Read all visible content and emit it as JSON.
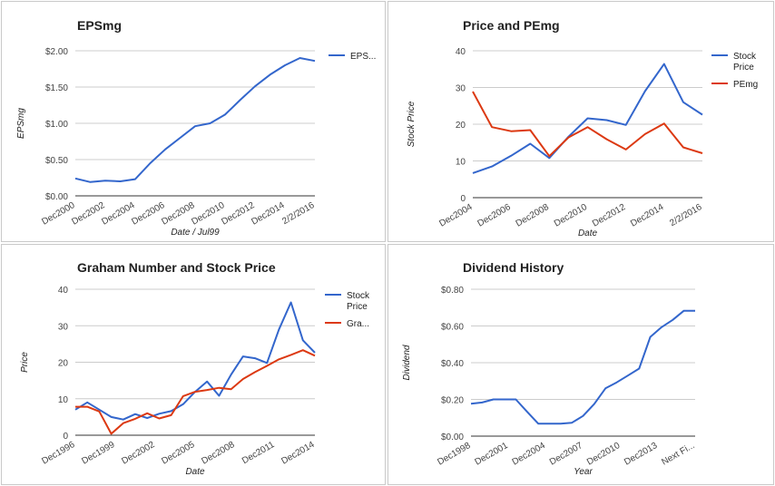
{
  "colors": {
    "blue": "#3366cc",
    "red": "#dc3912"
  },
  "chart_data": [
    {
      "type": "line",
      "title": "EPSmg",
      "xlabel": "Date / Jul99",
      "ylabel": "EPSmg",
      "yticks": [
        "$0.00",
        "$0.50",
        "$1.00",
        "$1.50",
        "$2.00"
      ],
      "ylim": [
        0,
        2.0
      ],
      "xticks": [
        "Dec2000",
        "Dec2002",
        "Dec2004",
        "Dec2006",
        "Dec2008",
        "Dec2010",
        "Dec2012",
        "Dec2014",
        "2/2/2016"
      ],
      "grid": true,
      "legend": "right",
      "series": [
        {
          "name": "EPS...",
          "color": "#3366cc",
          "values": [
            0.24,
            0.19,
            0.21,
            0.2,
            0.23,
            0.45,
            0.64,
            0.8,
            0.96,
            1.0,
            1.12,
            1.32,
            1.51,
            1.67,
            1.8,
            1.9,
            1.86
          ]
        }
      ]
    },
    {
      "type": "line",
      "title": "Price and PEmg",
      "xlabel": "Date",
      "ylabel": "Stock Price",
      "yticks": [
        "0",
        "10",
        "20",
        "30",
        "40"
      ],
      "ylim": [
        0,
        40
      ],
      "xticks": [
        "Dec2004",
        "Dec2006",
        "Dec2008",
        "Dec2010",
        "Dec2012",
        "Dec2014",
        "2/2/2016"
      ],
      "grid": true,
      "legend": "right",
      "series": [
        {
          "name": "Stock Price",
          "color": "#3366cc",
          "values": [
            6.7,
            8.5,
            11.4,
            14.7,
            10.8,
            16.6,
            21.6,
            21.1,
            19.8,
            29.0,
            36.4,
            26.0,
            22.6
          ]
        },
        {
          "name": "PEmg",
          "color": "#dc3912",
          "values": [
            28.9,
            19.2,
            18.1,
            18.4,
            11.3,
            16.4,
            19.2,
            15.9,
            13.1,
            17.3,
            20.2,
            13.7,
            12.1
          ]
        }
      ]
    },
    {
      "type": "line",
      "title": "Graham Number and Stock Price",
      "xlabel": "Date",
      "ylabel": "Price",
      "yticks": [
        "0",
        "10",
        "20",
        "30",
        "40"
      ],
      "ylim": [
        0,
        40
      ],
      "xticks": [
        "Dec1996",
        "Dec1999",
        "Dec2002",
        "Dec2005",
        "Dec2008",
        "Dec2011",
        "Dec2014"
      ],
      "grid": true,
      "legend": "right",
      "series": [
        {
          "name": "Stock Price",
          "color": "#3366cc",
          "values": [
            7.0,
            9.0,
            7.0,
            5.0,
            4.3,
            5.8,
            4.7,
            5.9,
            6.6,
            8.5,
            11.9,
            14.7,
            10.8,
            16.6,
            21.6,
            21.1,
            19.8,
            29.0,
            36.4,
            26.0,
            22.6
          ]
        },
        {
          "name": "Gra...",
          "color": "#dc3912",
          "values": [
            7.8,
            7.8,
            6.5,
            0.4,
            3.3,
            4.5,
            6.0,
            4.6,
            5.5,
            10.7,
            11.9,
            12.4,
            13.0,
            12.6,
            15.4,
            17.3,
            19.0,
            20.8,
            22.0,
            23.3,
            21.8
          ]
        }
      ]
    },
    {
      "type": "line",
      "title": "Dividend History",
      "xlabel": "Year",
      "ylabel": "Dividend",
      "yticks": [
        "$0.00",
        "$0.20",
        "$0.40",
        "$0.60",
        "$0.80"
      ],
      "ylim": [
        0,
        0.8
      ],
      "xticks": [
        "Dec1998",
        "Dec2001",
        "Dec2004",
        "Dec2007",
        "Dec2010",
        "Dec2013",
        "Next Fi..."
      ],
      "grid": true,
      "legend": "none",
      "series": [
        {
          "color": "#3366cc",
          "values": [
            0.177,
            0.183,
            0.2,
            0.2,
            0.2,
            0.133,
            0.068,
            0.068,
            0.068,
            0.073,
            0.11,
            0.175,
            0.26,
            0.293,
            0.33,
            0.368,
            0.54,
            0.593,
            0.633,
            0.683,
            0.683
          ]
        }
      ]
    }
  ]
}
